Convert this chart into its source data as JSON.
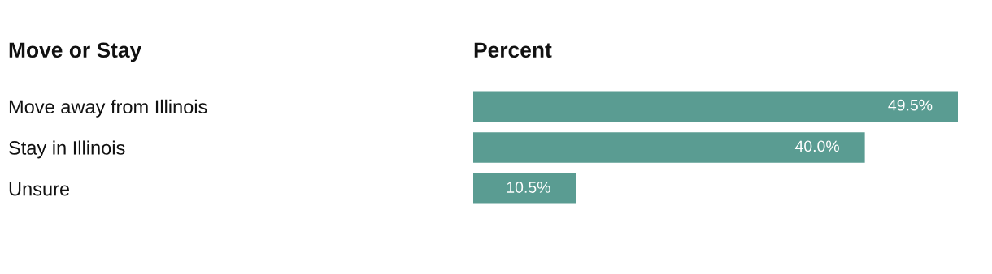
{
  "chart_data": {
    "type": "bar",
    "orientation": "horizontal",
    "ylabel": "Move or Stay",
    "xlabel": "Percent",
    "categories": [
      "Move away from Illinois",
      "Stay in Illinois",
      "Unsure"
    ],
    "values": [
      49.5,
      40.0,
      10.5
    ],
    "value_labels": [
      "49.5%",
      "40.0%",
      "10.5%"
    ],
    "color": "#5a9c92",
    "grid": false,
    "tick_labels": "y"
  }
}
